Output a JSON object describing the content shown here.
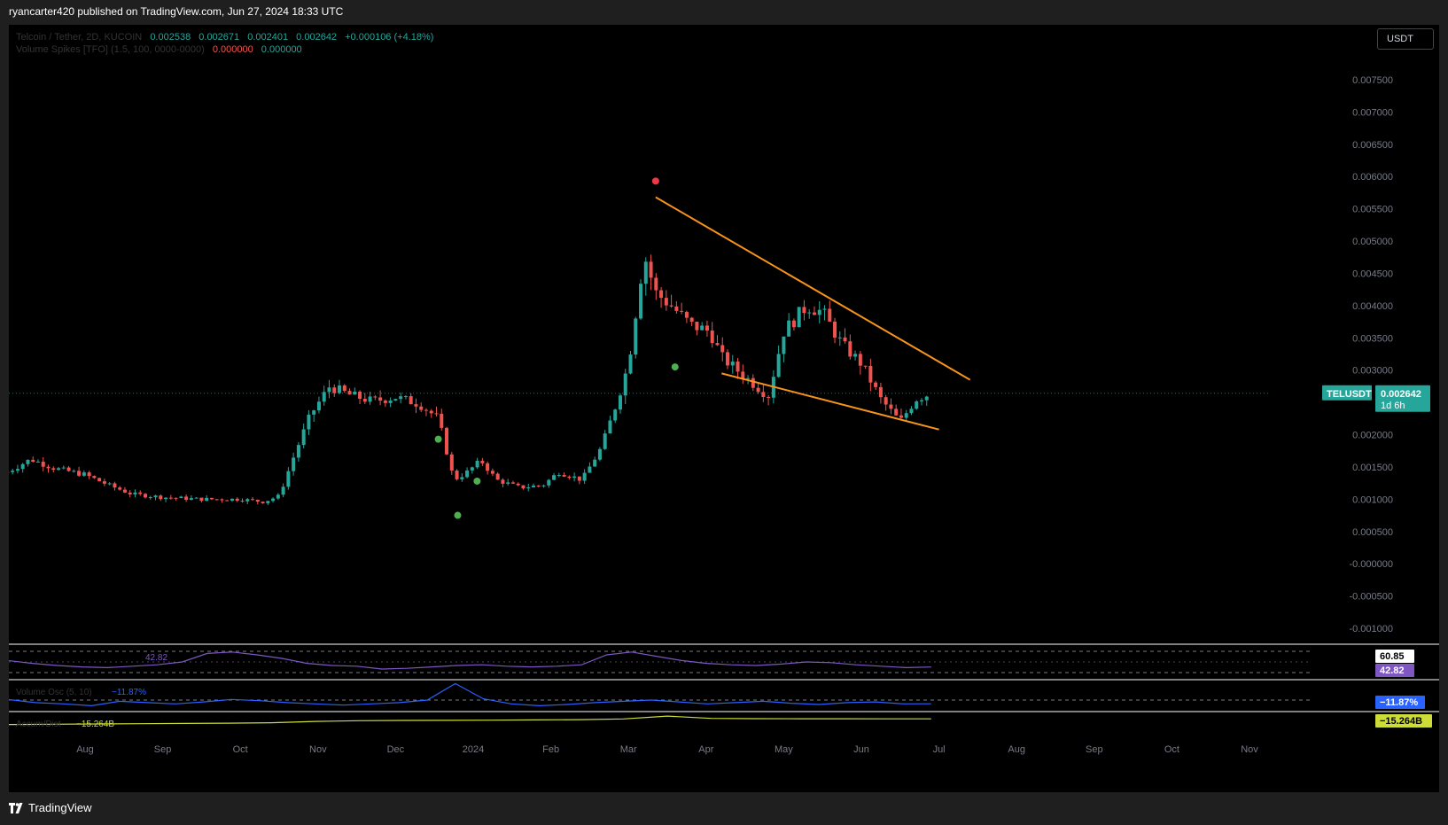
{
  "header": {
    "publish_text": "ryancarter420 published on TradingView.com, Jun 27, 2024 18:33 UTC"
  },
  "legend": {
    "symbol": "Telcoin / Tether, 2D, KUCOIN",
    "open": "0.002538",
    "high": "0.002671",
    "low": "0.002401",
    "close": "0.002642",
    "change": "+0.000106 (+4.18%)",
    "volume_label": "Volume Spikes [TFO] (1.5, 100, 0000-0000)",
    "volume_val1": "0.000000",
    "volume_val2": "0.000000"
  },
  "currency_button": "USDT",
  "price_tag": {
    "symbol": "TELUSDT",
    "price": "0.002642",
    "countdown": "1d 6h"
  },
  "rsi": {
    "value": "42.82",
    "upper_label": "60.85",
    "lower_label": "42.82"
  },
  "volume_osc": {
    "name": "Volume Osc (5, 10)",
    "value": "−11.87%",
    "tag": "−11.87%"
  },
  "accum_dist": {
    "name": "Accum/Dist",
    "value": "−15.264B",
    "tag": "−15.264B"
  },
  "footer": {
    "brand": "TradingView"
  },
  "colors": {
    "up": "#26a69a",
    "down": "#ef5350",
    "trendline": "#f7931a",
    "rsi_line": "#7e57c2",
    "osc_line": "#2962ff",
    "ad_line": "#cddc39"
  },
  "chart_data": {
    "type": "candlestick",
    "symbol": "TELUSDT",
    "exchange": "KUCOIN",
    "interval": "2D",
    "x_tick_labels": [
      "Aug",
      "Sep",
      "Oct",
      "Nov",
      "Dec",
      "2024",
      "Feb",
      "Mar",
      "Apr",
      "May",
      "Jun",
      "Jul",
      "Aug",
      "Sep",
      "Oct",
      "Nov"
    ],
    "y_tick_labels": [
      "0.007500",
      "0.007000",
      "0.006500",
      "0.006000",
      "0.005500",
      "0.005000",
      "0.004500",
      "0.004000",
      "0.003500",
      "0.003000",
      "0.002000",
      "0.001500",
      "0.001000",
      "0.000500",
      "-0.000000",
      "-0.000500",
      "-0.001000"
    ],
    "y_ticks": [
      0.0075,
      0.007,
      0.0065,
      0.006,
      0.0055,
      0.005,
      0.0045,
      0.004,
      0.0035,
      0.003,
      0.002,
      0.0015,
      0.001,
      0.0005,
      0,
      -0.0005,
      -0.001
    ],
    "ylim": [
      -0.0011,
      0.008
    ],
    "last_price": 0.002642,
    "price_path": [
      {
        "month": 7.0,
        "close": 0.00142
      },
      {
        "month": 7.3,
        "close": 0.00162
      },
      {
        "month": 7.6,
        "close": 0.00148
      },
      {
        "month": 8.0,
        "close": 0.00138
      },
      {
        "month": 8.3,
        "close": 0.00122
      },
      {
        "month": 8.6,
        "close": 0.00108
      },
      {
        "month": 9.0,
        "close": 0.00103
      },
      {
        "month": 9.5,
        "close": 0.001
      },
      {
        "month": 10.0,
        "close": 0.001
      },
      {
        "month": 10.3,
        "close": 0.00096
      },
      {
        "month": 10.5,
        "close": 0.00105
      },
      {
        "month": 10.7,
        "close": 0.0017
      },
      {
        "month": 10.9,
        "close": 0.0023
      },
      {
        "month": 11.15,
        "close": 0.00275
      },
      {
        "month": 11.4,
        "close": 0.00262
      },
      {
        "month": 11.7,
        "close": 0.00252
      },
      {
        "month": 12.0,
        "close": 0.00258
      },
      {
        "month": 12.3,
        "close": 0.00248
      },
      {
        "month": 12.55,
        "close": 0.00225
      },
      {
        "month": 12.75,
        "close": 0.0013
      },
      {
        "month": 12.9,
        "close": 0.0014
      },
      {
        "month": 13.1,
        "close": 0.0016
      },
      {
        "month": 13.3,
        "close": 0.0013
      },
      {
        "month": 13.6,
        "close": 0.00118
      },
      {
        "month": 13.9,
        "close": 0.00122
      },
      {
        "month": 14.1,
        "close": 0.00142
      },
      {
        "month": 14.4,
        "close": 0.0013
      },
      {
        "month": 14.65,
        "close": 0.0018
      },
      {
        "month": 14.85,
        "close": 0.0025
      },
      {
        "month": 15.0,
        "close": 0.0031
      },
      {
        "month": 15.2,
        "close": 0.0048
      },
      {
        "month": 15.35,
        "close": 0.0042
      },
      {
        "month": 15.55,
        "close": 0.004
      },
      {
        "month": 15.8,
        "close": 0.0037
      },
      {
        "month": 16.05,
        "close": 0.0036
      },
      {
        "month": 16.2,
        "close": 0.0032
      },
      {
        "month": 16.5,
        "close": 0.0029
      },
      {
        "month": 16.8,
        "close": 0.0026
      },
      {
        "month": 17.0,
        "close": 0.0036
      },
      {
        "month": 17.3,
        "close": 0.004
      },
      {
        "month": 17.5,
        "close": 0.0039
      },
      {
        "month": 17.75,
        "close": 0.0034
      },
      {
        "month": 18.0,
        "close": 0.0031
      },
      {
        "month": 18.25,
        "close": 0.00255
      },
      {
        "month": 18.5,
        "close": 0.0022
      },
      {
        "month": 18.7,
        "close": 0.00255
      },
      {
        "month": 18.9,
        "close": 0.002642
      }
    ],
    "trendlines": [
      {
        "name": "upper",
        "from": {
          "month": 15.35,
          "price": 0.00568
        },
        "to": {
          "month": 19.4,
          "price": 0.00285
        }
      },
      {
        "name": "lower",
        "from": {
          "month": 16.2,
          "price": 0.00295
        },
        "to": {
          "month": 19.0,
          "price": 0.00208
        }
      }
    ],
    "volume_spike_markers": [
      {
        "month": 12.55,
        "price": 0.00193,
        "color": "green"
      },
      {
        "month": 12.8,
        "price": 0.00075,
        "color": "green"
      },
      {
        "month": 13.05,
        "price": 0.00128,
        "color": "green"
      },
      {
        "month": 15.35,
        "price": 0.00593,
        "color": "red"
      },
      {
        "month": 15.6,
        "price": 0.00305,
        "color": "green"
      }
    ],
    "rsi_series": [
      52,
      48,
      45,
      43,
      42,
      44,
      46,
      50,
      62,
      64,
      60,
      55,
      48,
      45,
      44,
      40,
      41,
      43,
      45,
      46,
      44,
      43,
      44,
      46,
      60,
      64,
      58,
      52,
      48,
      46,
      45,
      47,
      50,
      49,
      46,
      44,
      42,
      42.82
    ],
    "volume_osc_series": [
      -5,
      -10,
      -12,
      -15,
      -8,
      -10,
      -12,
      -9,
      -5,
      -7,
      -10,
      -12,
      -14,
      -12,
      -10,
      -6,
      20,
      -4,
      -12,
      -15,
      -13,
      -10,
      -8,
      -6,
      -9,
      -12,
      -10,
      -8,
      -11,
      -13,
      -10,
      -9,
      -12,
      -11.87
    ],
    "accum_dist_series": [
      -17.5,
      -17.4,
      -17.3,
      -17.2,
      -17.1,
      -17.0,
      -16.8,
      -16.3,
      -16.0,
      -15.9,
      -15.85,
      -15.8,
      -15.7,
      -15.6,
      -15.3,
      -14.2,
      -15.1,
      -15.2,
      -15.25,
      -15.22,
      -15.26,
      -15.264
    ]
  }
}
